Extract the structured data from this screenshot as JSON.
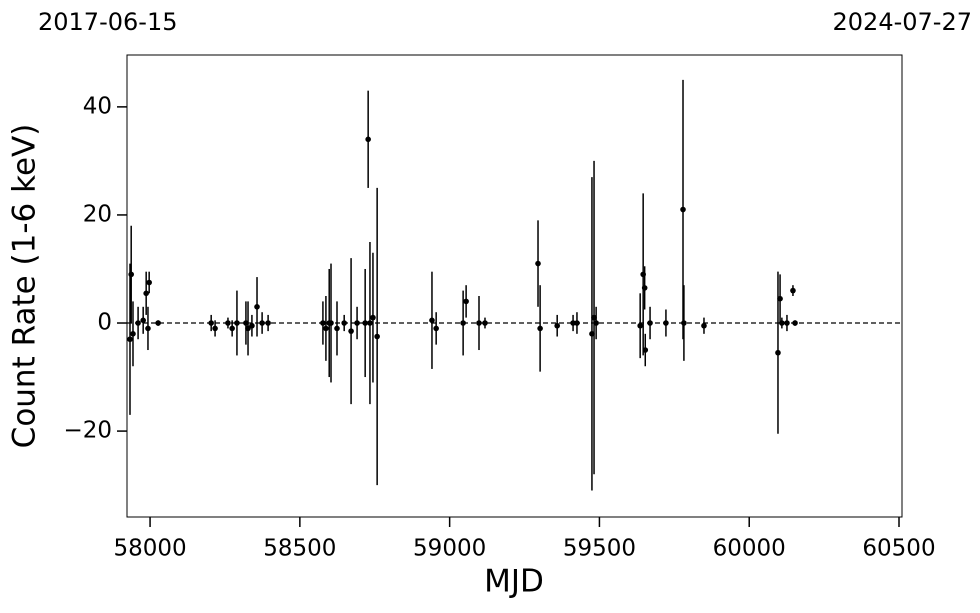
{
  "chart_data": {
    "type": "scatter",
    "annotations": [
      "2017-06-15",
      "2024-07-27"
    ],
    "xlabel": "MJD",
    "ylabel": "Count Rate (1-6 keV)",
    "color": "#000000",
    "reference_line": 0,
    "xlim": [
      57923,
      60510
    ],
    "ylim": [
      -35.9,
      49.6
    ],
    "xticks": [
      58000,
      58500,
      59000,
      59500,
      60000,
      60500
    ],
    "yticks": [
      {
        "value": -20,
        "label": "−20"
      },
      0,
      20,
      40
    ],
    "x": [
      57937,
      57933,
      57943,
      57960,
      57977,
      57987,
      57997,
      57993,
      58027,
      58204,
      58217,
      58260,
      58274,
      58290,
      58320,
      58327,
      58340,
      58357,
      58374,
      58394,
      58577,
      58587,
      58598,
      58604,
      58624,
      58648,
      58671,
      58691,
      58718,
      58728,
      58734,
      58744,
      58758,
      58941,
      58955,
      59045,
      59055,
      59098,
      59118,
      59295,
      59302,
      59359,
      59412,
      59425,
      59475,
      59482,
      59489,
      59636,
      59646,
      59651,
      59653,
      59669,
      59722,
      59779,
      59782,
      59849,
      60096,
      60103,
      60109,
      60126,
      60146,
      60153
    ],
    "values": [
      9,
      -3,
      -2,
      0,
      0.5,
      5.5,
      7.5,
      -1,
      0,
      0,
      -1,
      0,
      -1,
      0,
      0,
      -1,
      -0.5,
      3,
      0,
      0,
      0,
      -1,
      0,
      0,
      -1,
      0,
      -1.5,
      0,
      0,
      34,
      0,
      1,
      -2.5,
      0.5,
      -1,
      0,
      4,
      0,
      0,
      11,
      -1,
      -0.5,
      0,
      0,
      -2,
      1,
      0,
      -0.5,
      9,
      6.5,
      -5,
      0,
      0,
      21,
      0,
      -0.5,
      -5.5,
      4.5,
      0,
      0,
      6,
      0
    ],
    "errors": [
      9,
      14,
      6,
      3,
      2.5,
      4,
      2,
      4,
      0.5,
      1.5,
      1.5,
      1,
      1.5,
      6,
      4,
      5,
      2,
      5.5,
      2,
      1.5,
      4,
      6,
      10,
      11,
      5,
      1.5,
      13.5,
      3,
      10,
      9,
      15,
      12,
      27.5,
      9,
      3,
      6,
      3,
      5,
      1,
      8,
      8,
      2,
      1.5,
      2,
      29,
      29,
      3,
      6,
      15,
      4,
      3,
      3,
      2.5,
      24,
      7,
      1.5,
      15,
      4.5,
      1,
      1.5,
      1,
      0.5
    ]
  }
}
